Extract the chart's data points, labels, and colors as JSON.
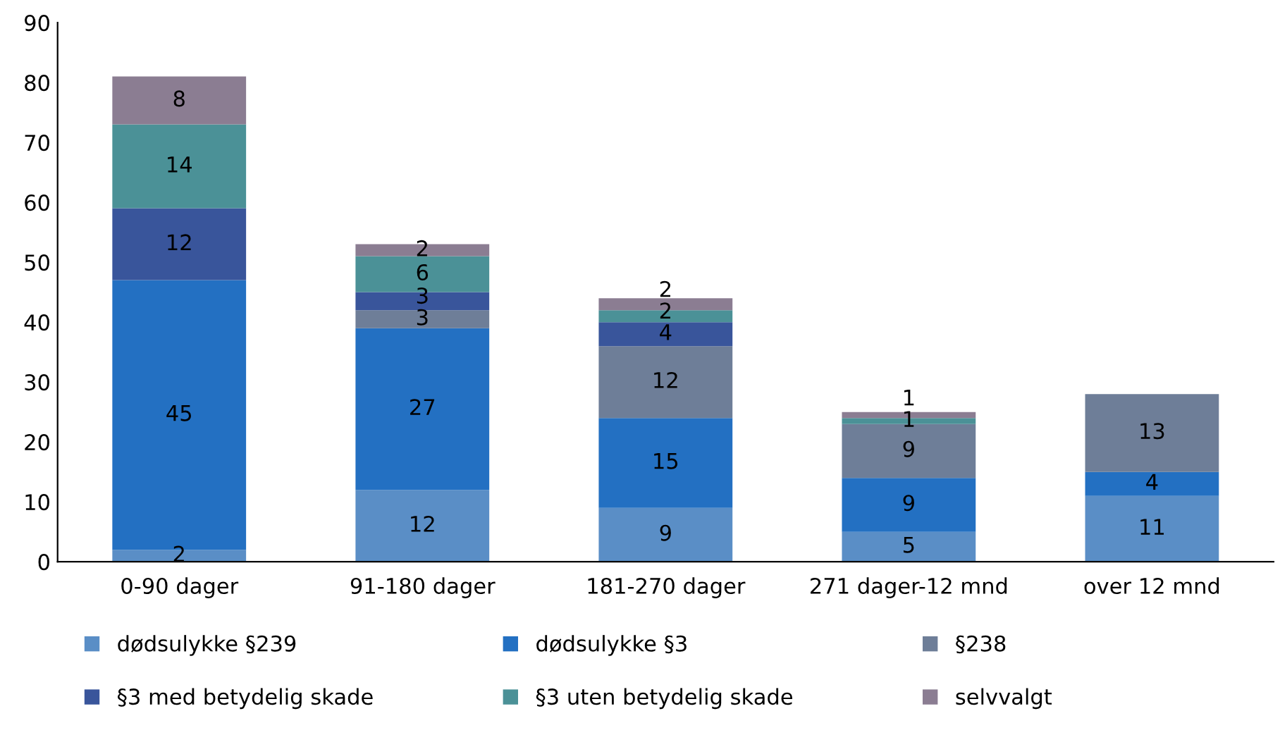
{
  "chart_data": {
    "type": "bar",
    "stacked": true,
    "categories": [
      "0-90 dager",
      "91-180 dager",
      "181-270 dager",
      "271 dager-12 mnd",
      "over 12 mnd"
    ],
    "series": [
      {
        "name": "dødsulykke §239",
        "color": "#5a8ec6",
        "values": [
          2,
          12,
          9,
          5,
          11
        ]
      },
      {
        "name": "dødsulykke §3",
        "color": "#2370c2",
        "values": [
          45,
          27,
          15,
          9,
          4
        ]
      },
      {
        "name": "§238",
        "color": "#6e7e98",
        "values": [
          null,
          3,
          12,
          9,
          13
        ]
      },
      {
        "name": "§3 med betydelig skade",
        "color": "#39559b",
        "values": [
          12,
          3,
          4,
          null,
          null
        ]
      },
      {
        "name": "§3 uten betydelig skade",
        "color": "#4b9197",
        "values": [
          14,
          6,
          2,
          1,
          null
        ]
      },
      {
        "name": "selvvalgt",
        "color": "#8b7d92",
        "values": [
          8,
          2,
          2,
          1,
          null
        ]
      }
    ],
    "ylim": [
      0,
      90
    ],
    "yticks": [
      0,
      10,
      20,
      30,
      40,
      50,
      60,
      70,
      80,
      90
    ],
    "grid": false,
    "legend": "bottom",
    "data_labels": true
  }
}
